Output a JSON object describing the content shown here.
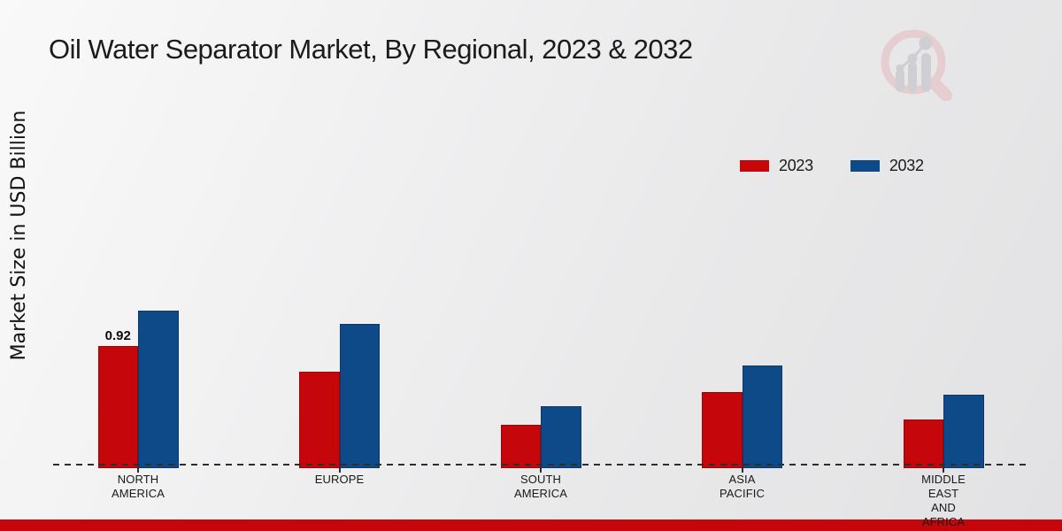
{
  "title": "Oil Water Separator Market, By Regional, 2023 & 2032",
  "y_axis_label": "Market Size in USD Billion",
  "legend": [
    {
      "label": "2023",
      "color": "#c5070c"
    },
    {
      "label": "2032",
      "color": "#0e4a87"
    }
  ],
  "chart_data": {
    "type": "bar",
    "title": "Oil Water Separator Market, By Regional, 2023 & 2032",
    "ylabel": "Market Size in USD Billion",
    "xlabel": "",
    "ylim": [
      0,
      1.35
    ],
    "grid": false,
    "legend_position": "upper right",
    "baseline_style": "dashed",
    "categories": [
      "NORTH AMERICA",
      "EUROPE",
      "SOUTH AMERICA",
      "ASIA PACIFIC",
      "MIDDLE EAST AND AFRICA"
    ],
    "category_lines": [
      [
        "NORTH",
        "AMERICA"
      ],
      [
        "EUROPE"
      ],
      [
        "SOUTH",
        "AMERICA"
      ],
      [
        "ASIA",
        "PACIFIC"
      ],
      [
        "MIDDLE",
        "EAST",
        "AND",
        "AFRICA"
      ]
    ],
    "series": [
      {
        "name": "2023",
        "color": "#c5070c",
        "values": [
          0.92,
          0.72,
          0.31,
          0.56,
          0.35
        ]
      },
      {
        "name": "2032",
        "color": "#0e4a87",
        "values": [
          1.19,
          1.09,
          0.45,
          0.77,
          0.54
        ]
      }
    ],
    "annotations": [
      {
        "series_index": 0,
        "category_index": 0,
        "text": "0.92"
      }
    ]
  },
  "footer": {
    "color": "#c5070c"
  },
  "watermark": {
    "name": "market-research-future-logo"
  }
}
